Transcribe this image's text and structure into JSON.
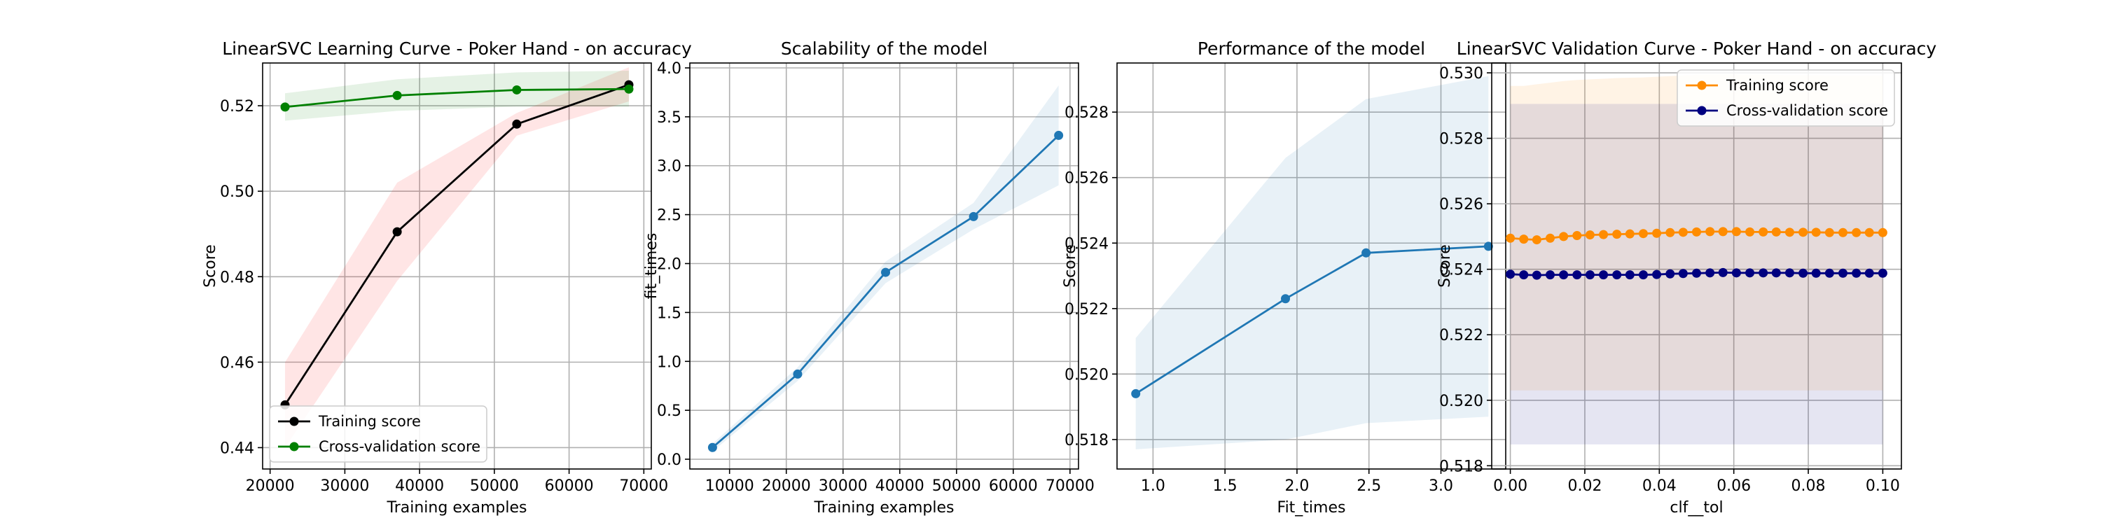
{
  "chart_data": [
    {
      "type": "line",
      "title": "LinearSVC Learning Curve - Poker Hand - on accuracy",
      "xlabel": "Training examples",
      "ylabel": "Score",
      "xlim": [
        19000,
        71000
      ],
      "ylim": [
        0.435,
        0.53
      ],
      "xticks": [
        20000,
        30000,
        40000,
        50000,
        60000,
        70000
      ],
      "yticks": [
        0.44,
        0.46,
        0.48,
        0.5,
        0.52
      ],
      "grid": true,
      "legend": "lower left",
      "x": [
        22000,
        37000,
        53000,
        68000
      ],
      "series": [
        {
          "name": "Training score",
          "color": "#000000",
          "band": "#ff0000",
          "values": [
            0.45,
            0.4905,
            0.5157,
            0.5249
          ],
          "lower": [
            0.44,
            0.479,
            0.513,
            0.521
          ],
          "upper": [
            0.46,
            0.502,
            0.5183,
            0.529
          ]
        },
        {
          "name": "Cross-validation score",
          "color": "#008000",
          "band": "#008000",
          "values": [
            0.5197,
            0.5224,
            0.5237,
            0.5239
          ],
          "lower": [
            0.5165,
            0.5188,
            0.5198,
            0.5198
          ],
          "upper": [
            0.5229,
            0.5262,
            0.5278,
            0.5282
          ]
        }
      ]
    },
    {
      "type": "line",
      "title": "Scalability of the model",
      "xlabel": "Training examples",
      "ylabel": "fit_times",
      "xlim": [
        3000,
        71500
      ],
      "ylim": [
        -0.1,
        4.05
      ],
      "xticks": [
        10000,
        20000,
        30000,
        40000,
        50000,
        60000,
        70000
      ],
      "yticks": [
        0.0,
        0.5,
        1.0,
        1.5,
        2.0,
        2.5,
        3.0,
        3.5,
        4.0
      ],
      "tick_labels_y": [
        "0.0",
        "0.5",
        "1.0",
        "1.5",
        "2.0",
        "2.5",
        "3.0",
        "3.5",
        "4.0"
      ],
      "grid": true,
      "x": [
        7000,
        22000,
        37500,
        53000,
        68000
      ],
      "series": [
        {
          "name": "",
          "color": "#1f77b4",
          "band": "#1f77b4",
          "values": [
            0.12,
            0.87,
            1.91,
            2.48,
            3.31
          ],
          "lower": [
            0.08,
            0.8,
            1.8,
            2.35,
            2.8
          ],
          "upper": [
            0.16,
            0.94,
            2.02,
            2.62,
            3.82
          ]
        }
      ]
    },
    {
      "type": "line",
      "title": "Performance of the model",
      "xlabel": "Fit_times",
      "ylabel": "Score",
      "xlim": [
        0.75,
        3.45
      ],
      "ylim": [
        0.5171,
        0.5295
      ],
      "xticks": [
        1.0,
        1.5,
        2.0,
        2.5,
        3.0
      ],
      "tick_labels_x": [
        "1.0",
        "1.5",
        "2.0",
        "2.5",
        "3.0"
      ],
      "yticks": [
        0.518,
        0.52,
        0.522,
        0.524,
        0.526,
        0.528
      ],
      "grid": true,
      "x": [
        0.88,
        1.92,
        2.48,
        3.33
      ],
      "series": [
        {
          "name": "",
          "color": "#1f77b4",
          "band": "#1f77b4",
          "values": [
            0.5194,
            0.5223,
            0.5237,
            0.5239
          ],
          "lower": [
            0.5177,
            0.518,
            0.5185,
            0.5187
          ],
          "upper": [
            0.5211,
            0.5266,
            0.5284,
            0.5291
          ]
        }
      ]
    },
    {
      "type": "line",
      "title": "LinearSVC Validation Curve - Poker Hand - on accuracy",
      "xlabel": "clf__tol",
      "ylabel": "Score",
      "xlim": [
        -0.005,
        0.105
      ],
      "ylim": [
        0.5179,
        0.5303
      ],
      "xticks": [
        0.0,
        0.02,
        0.04,
        0.06,
        0.08,
        0.1
      ],
      "tick_labels_x": [
        "0.00",
        "0.02",
        "0.04",
        "0.06",
        "0.08",
        "0.10"
      ],
      "yticks": [
        0.518,
        0.52,
        0.522,
        0.524,
        0.526,
        0.528,
        0.53
      ],
      "grid": true,
      "legend": "upper right",
      "x": [
        0.0,
        0.0036,
        0.0071,
        0.0107,
        0.0143,
        0.0179,
        0.0214,
        0.025,
        0.0286,
        0.0321,
        0.0357,
        0.0393,
        0.0429,
        0.0464,
        0.05,
        0.0536,
        0.0571,
        0.0607,
        0.0643,
        0.0679,
        0.0714,
        0.075,
        0.0786,
        0.0821,
        0.0857,
        0.0893,
        0.0929,
        0.0964,
        0.1
      ],
      "series": [
        {
          "name": "Training score",
          "color": "#ff8c00",
          "band": "#ff8c00",
          "values": [
            0.52495,
            0.52492,
            0.5249,
            0.52495,
            0.525,
            0.52503,
            0.52505,
            0.52506,
            0.52507,
            0.52508,
            0.52509,
            0.5251,
            0.52512,
            0.52513,
            0.52514,
            0.52515,
            0.52515,
            0.52515,
            0.52514,
            0.52514,
            0.52514,
            0.52513,
            0.52513,
            0.52513,
            0.52512,
            0.52512,
            0.52512,
            0.52512,
            0.52512
          ],
          "lower": [
            0.5203,
            0.5203,
            0.5203,
            0.5203,
            0.5203,
            0.5203,
            0.5203,
            0.5203,
            0.5203,
            0.5203,
            0.5203,
            0.5203,
            0.5203,
            0.5203,
            0.5203,
            0.5203,
            0.5203,
            0.5203,
            0.5203,
            0.5203,
            0.5203,
            0.5203,
            0.5203,
            0.5203,
            0.5203,
            0.5203,
            0.5203,
            0.5203,
            0.5203
          ],
          "upper": [
            0.5296,
            0.5296,
            0.52965,
            0.5297,
            0.52975,
            0.52978,
            0.5298,
            0.52982,
            0.52984,
            0.52985,
            0.52986,
            0.52988,
            0.5299,
            0.52992,
            0.52994,
            0.52995,
            0.52995,
            0.52995,
            0.52994,
            0.52994,
            0.52994,
            0.52993,
            0.52993,
            0.52993,
            0.52992,
            0.52992,
            0.52992,
            0.52992,
            0.52992
          ]
        },
        {
          "name": "Cross-validation score",
          "color": "#000080",
          "band": "#000080",
          "values": [
            0.52385,
            0.52383,
            0.52382,
            0.52383,
            0.52383,
            0.52383,
            0.52383,
            0.52383,
            0.52383,
            0.52383,
            0.52383,
            0.52384,
            0.52386,
            0.52387,
            0.52388,
            0.52389,
            0.5239,
            0.52389,
            0.52389,
            0.52389,
            0.52389,
            0.52389,
            0.52388,
            0.52388,
            0.52388,
            0.52388,
            0.52388,
            0.52388,
            0.52388
          ],
          "lower": [
            0.51865,
            0.51865,
            0.51865,
            0.51865,
            0.51865,
            0.51865,
            0.51865,
            0.51865,
            0.51865,
            0.51865,
            0.51865,
            0.51865,
            0.51865,
            0.51865,
            0.51865,
            0.51865,
            0.51865,
            0.51865,
            0.51865,
            0.51865,
            0.51865,
            0.51865,
            0.51865,
            0.51865,
            0.51865,
            0.51865,
            0.51865,
            0.51865,
            0.51865
          ],
          "upper": [
            0.52905,
            0.52905,
            0.52905,
            0.52905,
            0.52905,
            0.52905,
            0.52905,
            0.52905,
            0.52905,
            0.52905,
            0.52905,
            0.52905,
            0.52905,
            0.52905,
            0.52905,
            0.52905,
            0.52905,
            0.52905,
            0.52905,
            0.52905,
            0.52905,
            0.52905,
            0.52905,
            0.52905,
            0.52905,
            0.52905,
            0.52905,
            0.52905,
            0.52905
          ]
        }
      ]
    }
  ]
}
